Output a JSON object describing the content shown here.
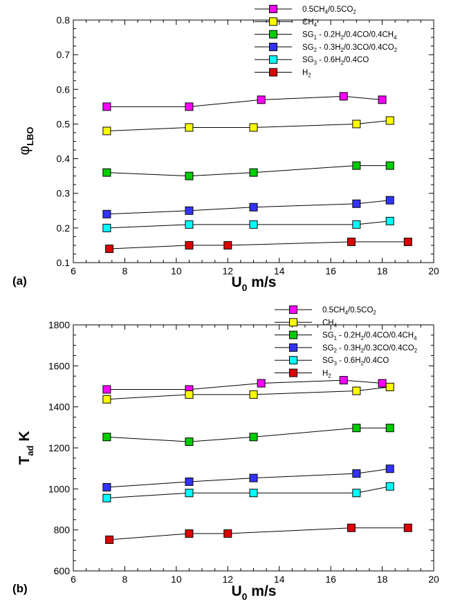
{
  "chart_data": [
    {
      "panel_label": "(a)",
      "type": "line",
      "title": "",
      "xlabel": "U0 m/s",
      "ylabel": "φLBO",
      "xlim": [
        6,
        20
      ],
      "ylim": [
        0.1,
        0.8
      ],
      "x_ticks": [
        "6",
        "8",
        "10",
        "12",
        "14",
        "16",
        "18",
        "20"
      ],
      "y_ticks": [
        "0.1",
        "0.2",
        "0.3",
        "0.4",
        "0.5",
        "0.6",
        "0.7",
        "0.8"
      ],
      "legend_position": "top-right",
      "series": [
        {
          "name": "0.5CH4/0.5CO2",
          "color": "#ff00ff",
          "x": [
            7.3,
            10.5,
            13.3,
            16.5,
            18.0
          ],
          "y": [
            0.55,
            0.55,
            0.57,
            0.58,
            0.57
          ]
        },
        {
          "name": "CH4",
          "color": "#ffff00",
          "x": [
            7.3,
            10.5,
            13.0,
            17.0,
            18.3
          ],
          "y": [
            0.48,
            0.49,
            0.49,
            0.5,
            0.51
          ]
        },
        {
          "name": "SG1 - 0.2H2/0.4CO/0.4CH4",
          "color": "#00cc00",
          "x": [
            7.3,
            10.5,
            13.0,
            17.0,
            18.3
          ],
          "y": [
            0.36,
            0.35,
            0.36,
            0.38,
            0.38
          ]
        },
        {
          "name": "SG2 - 0.3H2/0.3CO/0.4CO2",
          "color": "#3333ff",
          "x": [
            7.3,
            10.5,
            13.0,
            17.0,
            18.3
          ],
          "y": [
            0.24,
            0.25,
            0.26,
            0.27,
            0.28
          ]
        },
        {
          "name": "SG3 - 0.6H2/0.4CO",
          "color": "#00ffff",
          "x": [
            7.3,
            10.5,
            13.0,
            17.0,
            18.3
          ],
          "y": [
            0.2,
            0.21,
            0.21,
            0.21,
            0.22
          ]
        },
        {
          "name": "H2",
          "color": "#dd0000",
          "x": [
            7.4,
            10.5,
            12.0,
            16.8,
            19.0
          ],
          "y": [
            0.14,
            0.15,
            0.15,
            0.16,
            0.16
          ]
        }
      ]
    },
    {
      "panel_label": "(b)",
      "type": "line",
      "title": "",
      "xlabel": "U0 m/s",
      "ylabel": "Tad  K",
      "xlim": [
        6,
        20
      ],
      "ylim": [
        600,
        1800
      ],
      "x_ticks": [
        "6",
        "8",
        "10",
        "12",
        "14",
        "16",
        "18",
        "20"
      ],
      "y_ticks": [
        "600",
        "800",
        "1000",
        "1200",
        "1400",
        "1600",
        "1800"
      ],
      "legend_position": "top-right",
      "series": [
        {
          "name": "0.5CH4/0.5CO2",
          "color": "#ff00ff",
          "x": [
            7.3,
            10.5,
            13.3,
            16.5,
            18.0
          ],
          "y": [
            1485,
            1485,
            1515,
            1530,
            1515
          ]
        },
        {
          "name": "CH4",
          "color": "#ffff00",
          "x": [
            7.3,
            10.5,
            13.0,
            17.0,
            18.3
          ],
          "y": [
            1437,
            1460,
            1460,
            1478,
            1497
          ]
        },
        {
          "name": "SG1 - 0.2H2/0.4CO/0.4CH4",
          "color": "#00cc00",
          "x": [
            7.3,
            10.5,
            13.0,
            17.0,
            18.3
          ],
          "y": [
            1253,
            1230,
            1253,
            1297,
            1297
          ]
        },
        {
          "name": "SG2 - 0.3H2/0.3CO/0.4CO2",
          "color": "#3333ff",
          "x": [
            7.3,
            10.5,
            13.0,
            17.0,
            18.3
          ],
          "y": [
            1008,
            1035,
            1053,
            1075,
            1098
          ]
        },
        {
          "name": "SG3 - 0.6H2/0.4CO",
          "color": "#00ffff",
          "x": [
            7.3,
            10.5,
            13.0,
            17.0,
            18.3
          ],
          "y": [
            955,
            980,
            980,
            980,
            1012
          ]
        },
        {
          "name": "H2",
          "color": "#dd0000",
          "x": [
            7.4,
            10.5,
            12.0,
            16.8,
            19.0
          ],
          "y": [
            752,
            782,
            782,
            810,
            810
          ]
        }
      ]
    }
  ]
}
